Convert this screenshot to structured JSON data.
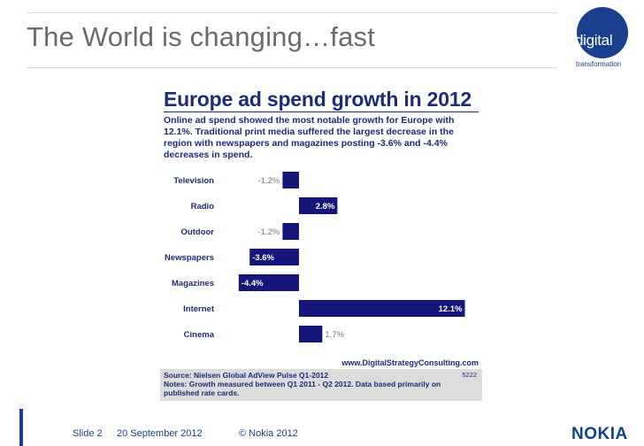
{
  "slide": {
    "title": "The World is changing…fast",
    "logo_word": "digital",
    "logo_sub": "transformation",
    "brand": "NOKIA",
    "brand_color": "#124191"
  },
  "chart_data": {
    "type": "bar",
    "orientation": "horizontal",
    "title": "Europe ad spend growth in 2012",
    "subtitle": "Online ad spend showed the most notable growth for Europe with 12.1%. Traditional print media suffered the largest decrease in the region with newspapers and magazines posting -3.6% and -4.4% decreases in spend.",
    "categories": [
      "Television",
      "Radio",
      "Outdoor",
      "Newspapers",
      "Magazines",
      "Internet",
      "Cinema"
    ],
    "values": [
      -1.2,
      2.8,
      -1.2,
      -3.6,
      -4.4,
      12.1,
      1.7
    ],
    "value_labels": [
      "-1.2%",
      "2.8%",
      "-1.2%",
      "-3.6%",
      "-4.4%",
      "12.1%",
      "1.7%"
    ],
    "xlim": [
      -5,
      13
    ],
    "bar_color": "#15157a",
    "credit": "www.DigitalStrategyConsulting.com",
    "source": "Source: Nielsen Global AdView Pulse Q1-2012",
    "notes": "Notes: Growth measured between Q1 2011 - Q2 2012. Data based primarily on",
    "notes_cont": "published rate cards.",
    "code": "5222"
  },
  "footer": {
    "slide_number": "Slide 2",
    "date": "20 September 2012",
    "copyright": "© Nokia 2012"
  }
}
